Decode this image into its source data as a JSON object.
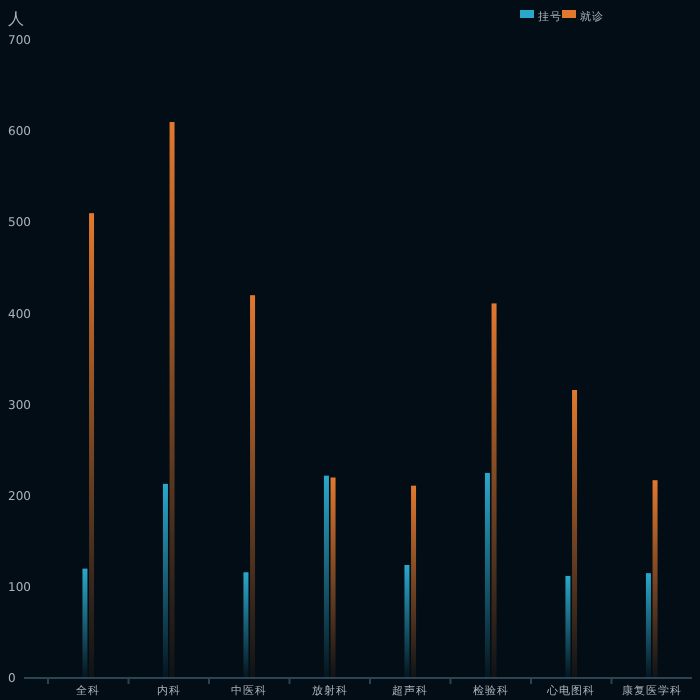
{
  "chart_data": {
    "type": "bar",
    "ylabel": "人",
    "categories": [
      "全科",
      "内科",
      "中医科",
      "放射科",
      "超声科",
      "检验科",
      "心电图科",
      "康复医学科"
    ],
    "series": [
      {
        "name": "挂号",
        "color": "#2aa8cc",
        "values": [
          120,
          213,
          116,
          222,
          124,
          225,
          112,
          115
        ]
      },
      {
        "name": "就诊",
        "color": "#e2782e",
        "values": [
          510,
          610,
          420,
          220,
          211,
          411,
          316,
          217
        ]
      }
    ],
    "ylim": [
      0,
      700
    ],
    "yticks": [
      0,
      100,
      200,
      300,
      400,
      500,
      600,
      700
    ],
    "grid": false,
    "legend": "top right"
  }
}
